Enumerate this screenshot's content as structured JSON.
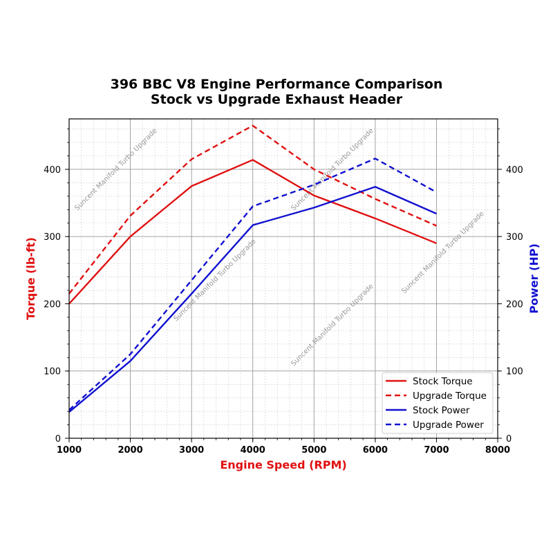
{
  "chart_data": {
    "type": "line",
    "title": "396 BBC V8 Engine Performance Comparison",
    "subtitle": "Stock vs Upgrade Exhaust Header",
    "xlabel": "Engine Speed (RPM)",
    "ylabel": "Torque (lb-ft)",
    "ylabel_right": "Power (HP)",
    "xlim": [
      1000,
      8000
    ],
    "ylim": [
      0,
      475
    ],
    "ylim_right": [
      0,
      475
    ],
    "xticks": [
      "1000",
      "2000",
      "3000",
      "4000",
      "5000",
      "6000",
      "7000",
      "8000"
    ],
    "yticks": [
      "0",
      "100",
      "200",
      "300",
      "400"
    ],
    "yticks_right": [
      "0",
      "100",
      "200",
      "300",
      "400"
    ],
    "grid": true,
    "minor_grid": true,
    "legend_position": "lower-right",
    "watermark": "Suncent Manifold Turbo Upgrade",
    "x": [
      1000,
      2000,
      3000,
      4000,
      5000,
      6000,
      7000
    ],
    "series": [
      {
        "name": "Stock Torque",
        "axis": "left",
        "color": "#e01010",
        "dash": false,
        "values": [
          200,
          300,
          375,
          414,
          361,
          327,
          290
        ]
      },
      {
        "name": "Upgrade Torque",
        "axis": "left",
        "color": "#e01010",
        "dash": true,
        "values": [
          215,
          331,
          415,
          465,
          400,
          356,
          316
        ]
      },
      {
        "name": "Stock Power",
        "axis": "right",
        "color": "#1010d0",
        "dash": false,
        "values": [
          39,
          115,
          215,
          317,
          343,
          374,
          334
        ]
      },
      {
        "name": "Upgrade Power",
        "axis": "right",
        "color": "#1010d0",
        "dash": true,
        "values": [
          42,
          125,
          235,
          345,
          377,
          416,
          366
        ]
      }
    ],
    "colors": {
      "left_axis_label": "#e01010",
      "right_axis_label": "#1010d0",
      "xlabel": "#e01010"
    }
  }
}
